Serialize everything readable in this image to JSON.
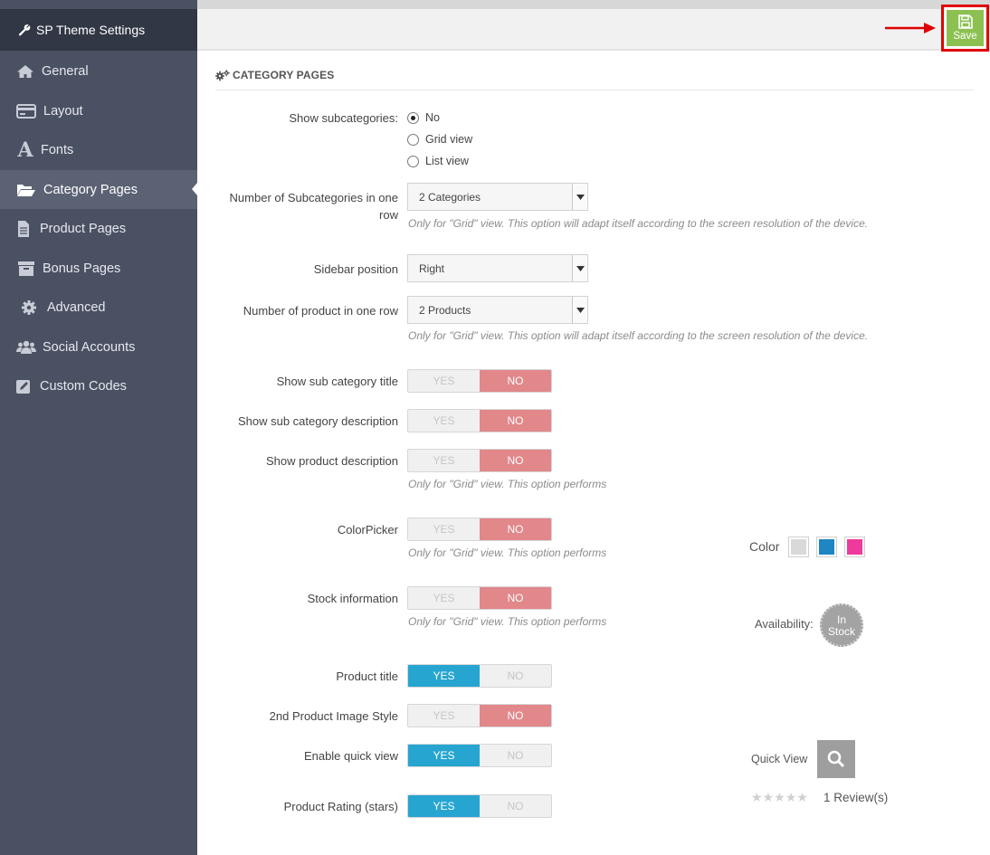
{
  "app": {
    "title": "SP Theme Settings"
  },
  "sidebar": {
    "items": [
      {
        "label": "General",
        "icon": "home-icon"
      },
      {
        "label": "Layout",
        "icon": "card-icon"
      },
      {
        "label": "Fonts",
        "icon": "font-icon"
      },
      {
        "label": "Category Pages",
        "icon": "folder-open-icon",
        "active": true
      },
      {
        "label": "Product Pages",
        "icon": "file-icon"
      },
      {
        "label": "Bonus Pages",
        "icon": "archive-icon"
      },
      {
        "label": "Advanced",
        "icon": "gear-icon"
      },
      {
        "label": "Social Accounts",
        "icon": "users-icon"
      },
      {
        "label": "Custom Codes",
        "icon": "edit-icon"
      }
    ]
  },
  "toolbar": {
    "save_label": "Save"
  },
  "section": {
    "title": "CATEGORY PAGES"
  },
  "form": {
    "show_subcategories": {
      "label": "Show subcategories:",
      "options": [
        "No",
        "Grid view",
        "List view"
      ],
      "selected": "No"
    },
    "num_subcategories": {
      "label": "Number of Subcategories in one row",
      "value": "2 Categories",
      "help": "Only for \"Grid\" view. This option will adapt itself according to the screen resolution of the device."
    },
    "sidebar_position": {
      "label": "Sidebar position",
      "value": "Right"
    },
    "num_products": {
      "label": "Number of product in one row",
      "value": "2 Products",
      "help": "Only for \"Grid\" view. This option will adapt itself according to the screen resolution of the device."
    },
    "toggle_yes": "YES",
    "toggle_no": "NO",
    "toggles": [
      {
        "label": "Show sub category title",
        "value": "NO"
      },
      {
        "label": "Show sub category description",
        "value": "NO"
      },
      {
        "label": "Show product description",
        "value": "NO",
        "help": "Only for \"Grid\" view. This option performs"
      },
      {
        "label": "ColorPicker",
        "value": "NO",
        "help": "Only for \"Grid\" view. This option performs"
      },
      {
        "label": "Stock information",
        "value": "NO",
        "help": "Only for \"Grid\" view. This option performs"
      },
      {
        "label": "Product title",
        "value": "YES"
      },
      {
        "label": "2nd Product Image Style",
        "value": "NO"
      },
      {
        "label": "Enable quick view",
        "value": "YES"
      },
      {
        "label": "Product Rating (stars)",
        "value": "YES"
      }
    ]
  },
  "preview": {
    "color_label": "Color",
    "colors": [
      "#d9d9d9",
      "#1f86c4",
      "#ee3a9c"
    ],
    "availability_label": "Availability:",
    "stock_badge_line1": "In",
    "stock_badge_line2": "Stock",
    "quick_view_label": "Quick View",
    "rating_stars": 0,
    "rating_max": 5,
    "reviews_text": "1 Review(s)"
  },
  "colors": {
    "sidebar_bg": "#4a5163",
    "header_bg": "#323745",
    "save_green": "#8cc152",
    "toggle_yes_blue": "#26a5d1",
    "toggle_no_red": "#e2878a",
    "highlight_red": "#e00000"
  }
}
